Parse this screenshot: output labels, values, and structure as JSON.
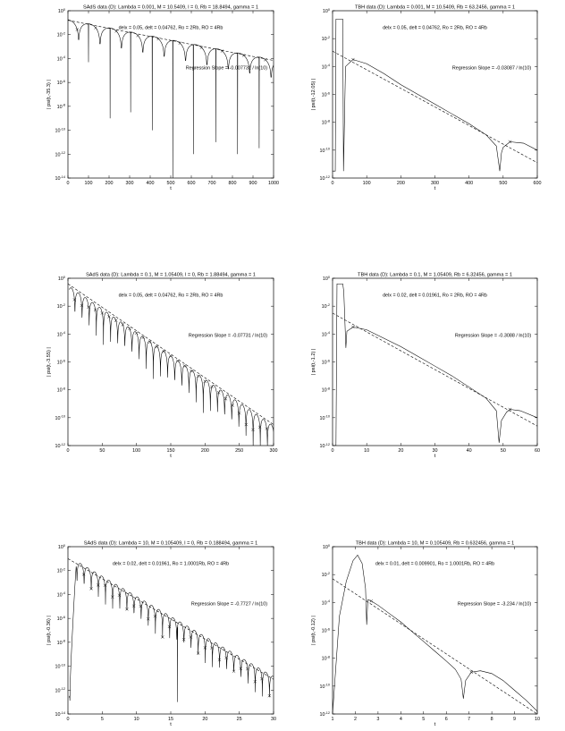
{
  "chart_data": [
    {
      "type": "line",
      "id": "p1",
      "title": "SAdS data (D): Lambda = 0.001, M = 10.5409, l = 0, Rb = 18.8494, gamma = 1",
      "xlabel": "t",
      "ylabel": "| psi(t,-35.3) |",
      "annotations": [
        "delx = 0.05, delt = 0.04762, Ro = 2Rb, RO = 4Rb",
        "Regression Slope = -0.007731 / ln(10)"
      ],
      "xlim": [
        0,
        1000
      ],
      "ylog10": [
        -14,
        0
      ],
      "xticks": [
        "0",
        "100",
        "200",
        "300",
        "400",
        "500",
        "600",
        "700",
        "800",
        "900",
        "1000"
      ],
      "yticks": [
        "10^0",
        "10^-2",
        "10^-4",
        "10^-6",
        "10^-8",
        "10^-10",
        "10^-12",
        "10^-14"
      ],
      "series": [
        {
          "style": "solid",
          "kind": "ringdown",
          "x0": 0,
          "peak_x": 0,
          "peak_log": -0.75,
          "slope_log_per_unit": -0.003357,
          "period": 104,
          "phase": 0,
          "dip_depth": 1.5,
          "dips": [
            [
              100,
              -4.3
            ],
            [
              205,
              -9
            ],
            [
              305,
              -8.5
            ],
            [
              410,
              -10
            ],
            [
              510,
              -14
            ],
            [
              610,
              -12
            ],
            [
              720,
              -11
            ],
            [
              825,
              -12
            ],
            [
              930,
              -11.5
            ]
          ]
        },
        {
          "style": "dashed",
          "kind": "regression",
          "x": [
            0,
            1000
          ],
          "log10y": [
            -0.8,
            -4.16
          ]
        }
      ],
      "markers_x": [
        45,
        135,
        235,
        340,
        440,
        545,
        650,
        750,
        855,
        960
      ]
    },
    {
      "type": "line",
      "id": "p2",
      "title": "TBH data (D): Lambda = 0.001, M = 10.5409, Rb = 63.2456, gamma = 1",
      "xlabel": "t",
      "ylabel": "| psi(t,-12.05) |",
      "annotations": [
        "delx = 0.05, delt = 0.04762, Ro = 2Rb, RO = 4Rb",
        "Regression Slope = -0.03087 / ln(10)"
      ],
      "xlim": [
        0,
        600
      ],
      "ylog10": [
        -12,
        0
      ],
      "xticks": [
        "0",
        "100",
        "200",
        "300",
        "400",
        "500",
        "600"
      ],
      "yticks": [
        "10^0",
        "10^-2",
        "10^-4",
        "10^-6",
        "10^-8",
        "10^-10",
        "10^-12"
      ],
      "series": [
        {
          "style": "solid",
          "kind": "knots",
          "x": [
            0,
            8,
            10,
            30,
            32,
            38,
            60,
            100,
            150,
            200,
            250,
            300,
            350,
            400,
            450,
            480,
            490,
            495,
            500,
            520,
            560,
            600
          ],
          "log10y": [
            -11.5,
            -11.5,
            -0.6,
            -0.6,
            -11.5,
            -4,
            -3.5,
            -3.8,
            -4.5,
            -5.3,
            -6,
            -6.7,
            -7.4,
            -8.1,
            -8.9,
            -9.7,
            -11.5,
            -10.2,
            -9.8,
            -9.4,
            -9.5,
            -10
          ]
        },
        {
          "style": "dashed",
          "kind": "regression",
          "x": [
            0,
            600
          ],
          "log10y": [
            -2.9,
            -10.9
          ]
        }
      ],
      "markers_x": [
        60,
        520
      ]
    },
    {
      "type": "line",
      "id": "p3",
      "title": "SAdS data (D): Lambda = 0.1, M = 1.05409, l = 0, Rb = 1.88494, gamma = 1",
      "xlabel": "t",
      "ylabel": "| psi(t,-3.55) |",
      "annotations": [
        "delx = 0.05, delt = 0.04762, Ro = 2Rb, RO = 4Rb",
        "Regression Slope = -0.07731 / ln(10)"
      ],
      "xlim": [
        0,
        300
      ],
      "ylog10": [
        -12,
        0
      ],
      "xticks": [
        "0",
        "50",
        "100",
        "150",
        "200",
        "250",
        "300"
      ],
      "yticks": [
        "10^0",
        "10^-2",
        "10^-4",
        "10^-6",
        "10^-8",
        "10^-10",
        "10^-12"
      ],
      "series": [
        {
          "style": "solid",
          "kind": "ringdown",
          "x0": 2,
          "peak_x": 2,
          "peak_log": -0.6,
          "slope_log_per_unit": -0.03357,
          "period": 10.4,
          "phase": 5,
          "dip_depth": 2.5,
          "dips": []
        },
        {
          "style": "dashed",
          "kind": "regression",
          "x": [
            0,
            300
          ],
          "log10y": [
            -0.4,
            -10.5
          ]
        }
      ],
      "markers_x": [
        9.5,
        20,
        30,
        40,
        50,
        60,
        70,
        80,
        90,
        100,
        110,
        120,
        130,
        140,
        150,
        160,
        170,
        180,
        190,
        200,
        210,
        220,
        230,
        240,
        250,
        260,
        270,
        280,
        290
      ]
    },
    {
      "type": "line",
      "id": "p4",
      "title": "TBH data (D): Lambda = 0.1, M = 1.05409, Rb = 6.32456, gamma = 1",
      "xlabel": "t",
      "ylabel": "| psi(t,-1.2) |",
      "annotations": [
        "delx = 0.02, delt = 0.01961, Ro = 2Rb, RO = 4Rb",
        "Regression Slope = -0.3088 / ln(10)"
      ],
      "xlim": [
        0,
        60
      ],
      "ylog10": [
        -12,
        0
      ],
      "xticks": [
        "0",
        "10",
        "20",
        "30",
        "40",
        "50",
        "60"
      ],
      "yticks": [
        "10^0",
        "10^-2",
        "10^-4",
        "10^-6",
        "10^-8",
        "10^-10",
        "10^-12"
      ],
      "series": [
        {
          "style": "solid",
          "kind": "knots",
          "x": [
            0,
            1,
            1.3,
            3,
            3.3,
            3.9,
            4.2,
            6,
            10,
            15,
            20,
            25,
            30,
            35,
            40,
            45,
            48,
            48.8,
            49.5,
            51,
            52,
            55,
            60
          ],
          "log10y": [
            -12,
            -12,
            -0.4,
            -0.4,
            -1,
            -5,
            -3.8,
            -3.5,
            -3.7,
            -4.3,
            -4.9,
            -5.6,
            -6.3,
            -7,
            -7.8,
            -8.6,
            -9.5,
            -11.8,
            -10.2,
            -9.6,
            -9.4,
            -9.5,
            -10
          ]
        },
        {
          "style": "dashed",
          "kind": "regression",
          "x": [
            0,
            60
          ],
          "log10y": [
            -2.5,
            -10.6
          ]
        }
      ],
      "markers_x": [
        6,
        52
      ]
    },
    {
      "type": "line",
      "id": "p5",
      "title": "SAdS data (D): Lambda = 10, M = 0.105409, l = 0, Rb = 0.188494, gamma = 1",
      "xlabel": "t",
      "ylabel": "| psi(t,-0.36) |",
      "annotations": [
        "delx = 0.02, delt = 0.01961, Ro = 1.0001Rb, RO = 4Rb",
        "Regression Slope = -0.7727 / ln(10)"
      ],
      "xlim": [
        0,
        30
      ],
      "ylog10": [
        -14,
        0
      ],
      "xticks": [
        "0",
        "5",
        "10",
        "15",
        "20",
        "25",
        "30"
      ],
      "yticks": [
        "10^0",
        "10^-2",
        "10^-4",
        "10^-6",
        "10^-8",
        "10^-10",
        "10^-12",
        "10^-14"
      ],
      "series": [
        {
          "style": "solid",
          "kind": "ringdown",
          "x0": 0.2,
          "peak_x": 1.2,
          "peak_log": -1.2,
          "slope_log_per_unit": -0.336,
          "period": 1.04,
          "phase": 0.8,
          "dip_depth": 2.2,
          "dips": [
            [
              16,
              -13
            ]
          ]
        },
        {
          "style": "dashed",
          "kind": "regression",
          "x": [
            0,
            30
          ],
          "log10y": [
            -1.0,
            -11.1
          ]
        }
      ],
      "markers_x": [
        2.3,
        3.4,
        4.4,
        5.4,
        6.5,
        7.5,
        8.6,
        9.6,
        10.6,
        11.7,
        12.7,
        13.8,
        14.8,
        16.9,
        17.9,
        19,
        20,
        21,
        22.1,
        23.1,
        24.2,
        25.2,
        26.2,
        27.3,
        28.3,
        29.4
      ]
    },
    {
      "type": "line",
      "id": "p6",
      "title": "TBH data (D): Lambda = 10, M = 0.105409, Rb = 0.632456, gamma = 1",
      "xlabel": "t",
      "ylabel": "| psi(t,-0.12) |",
      "annotations": [
        "delx = 0.01, delt = 0.009901, Ro = 1.0001Rb, RO = 4Rb",
        "Regression Slope = -3.234 / ln(10)"
      ],
      "xlim": [
        1,
        10
      ],
      "ylog10": [
        -12,
        0
      ],
      "xticks": [
        "1",
        "2",
        "3",
        "4",
        "5",
        "6",
        "7",
        "8",
        "9",
        "10"
      ],
      "yticks": [
        "10^0",
        "10^-2",
        "10^-4",
        "10^-6",
        "10^-8",
        "10^-10",
        "10^-12"
      ],
      "series": [
        {
          "style": "solid",
          "kind": "knots",
          "x": [
            1,
            1.3,
            1.6,
            1.9,
            2.1,
            2.3,
            2.45,
            2.5,
            2.55,
            2.7,
            3,
            3.5,
            4,
            4.5,
            5,
            5.5,
            6,
            6.4,
            6.65,
            6.75,
            6.85,
            7.1,
            7.5,
            8,
            8.5,
            9,
            9.5,
            10
          ],
          "log10y": [
            -12,
            -5,
            -2.5,
            -1,
            -0.6,
            -1.2,
            -3,
            -5.6,
            -3.8,
            -3.9,
            -4.2,
            -4.8,
            -5.4,
            -6.1,
            -6.8,
            -7.5,
            -8.2,
            -8.8,
            -9.5,
            -10.9,
            -9.6,
            -9,
            -8.9,
            -9.1,
            -9.6,
            -10.3,
            -11,
            -11.8
          ]
        },
        {
          "style": "dashed",
          "kind": "regression",
          "x": [
            1,
            10
          ],
          "log10y": [
            -2.3,
            -12
          ]
        }
      ],
      "markers_x": [
        2.7,
        7.1
      ]
    }
  ]
}
